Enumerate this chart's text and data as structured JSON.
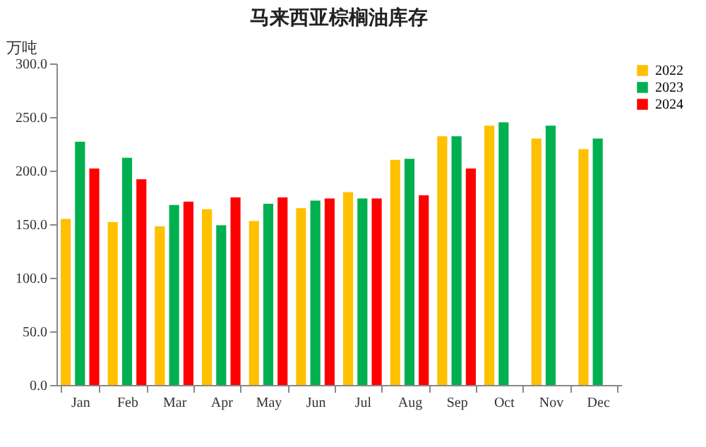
{
  "chart_data": {
    "type": "bar",
    "title": "马来西亚棕榈油库存",
    "ylabel": "万吨",
    "categories": [
      "Jan",
      "Feb",
      "Mar",
      "Apr",
      "May",
      "Jun",
      "Jul",
      "Aug",
      "Sep",
      "Oct",
      "Nov",
      "Dec"
    ],
    "series": [
      {
        "name": "2022",
        "color": "#ffc000",
        "values": [
          155,
          152,
          148,
          164,
          153,
          165,
          180,
          210,
          232,
          242,
          230,
          220
        ]
      },
      {
        "name": "2023",
        "color": "#00b050",
        "values": [
          227,
          212,
          168,
          149,
          169,
          172,
          174,
          211,
          232,
          245,
          242,
          230
        ]
      },
      {
        "name": "2024",
        "color": "#ff0000",
        "values": [
          202,
          192,
          171,
          175,
          175,
          174,
          174,
          177,
          202,
          null,
          null,
          null
        ]
      }
    ],
    "ylim": [
      0,
      300
    ],
    "yticks": [
      {
        "value": 0,
        "label": "0.0"
      },
      {
        "value": 50,
        "label": "50.0"
      },
      {
        "value": 100,
        "label": "100.0"
      },
      {
        "value": 150,
        "label": "150.0"
      },
      {
        "value": 200,
        "label": "200.0"
      },
      {
        "value": 250,
        "label": "250.0"
      },
      {
        "value": 300,
        "label": "300.0"
      }
    ],
    "grid": false,
    "legend": "right"
  }
}
